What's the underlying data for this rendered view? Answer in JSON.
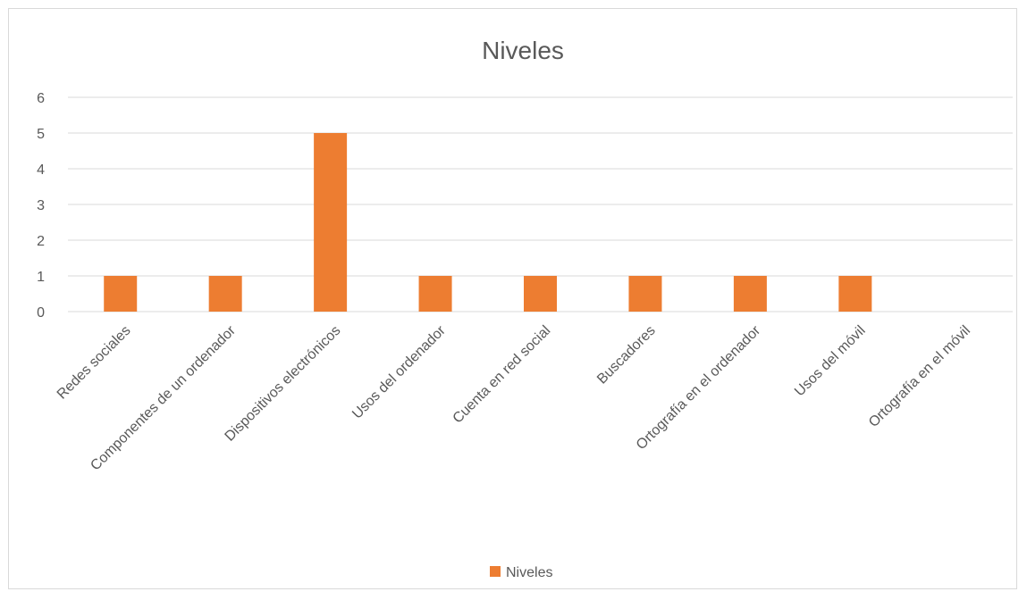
{
  "chart_data": {
    "type": "bar",
    "title": "Niveles",
    "categories": [
      "Redes sociales",
      "Componentes de un ordenador",
      "Dispositivos electrónicos",
      "Usos del ordenador",
      "Cuenta en red social",
      "Buscadores",
      "Ortografía en el ordenador",
      "Usos del móvil",
      "Ortografía en el móvil"
    ],
    "series": [
      {
        "name": "Niveles",
        "values": [
          1,
          1,
          5,
          1,
          1,
          1,
          1,
          1,
          0
        ],
        "color": "#ed7d31"
      }
    ],
    "yticks": [
      "0",
      "1",
      "2",
      "3",
      "4",
      "5",
      "6"
    ],
    "ylim": [
      0,
      6
    ],
    "grid": true,
    "gridColor": "#d9d9d9",
    "legend": "bottom"
  }
}
